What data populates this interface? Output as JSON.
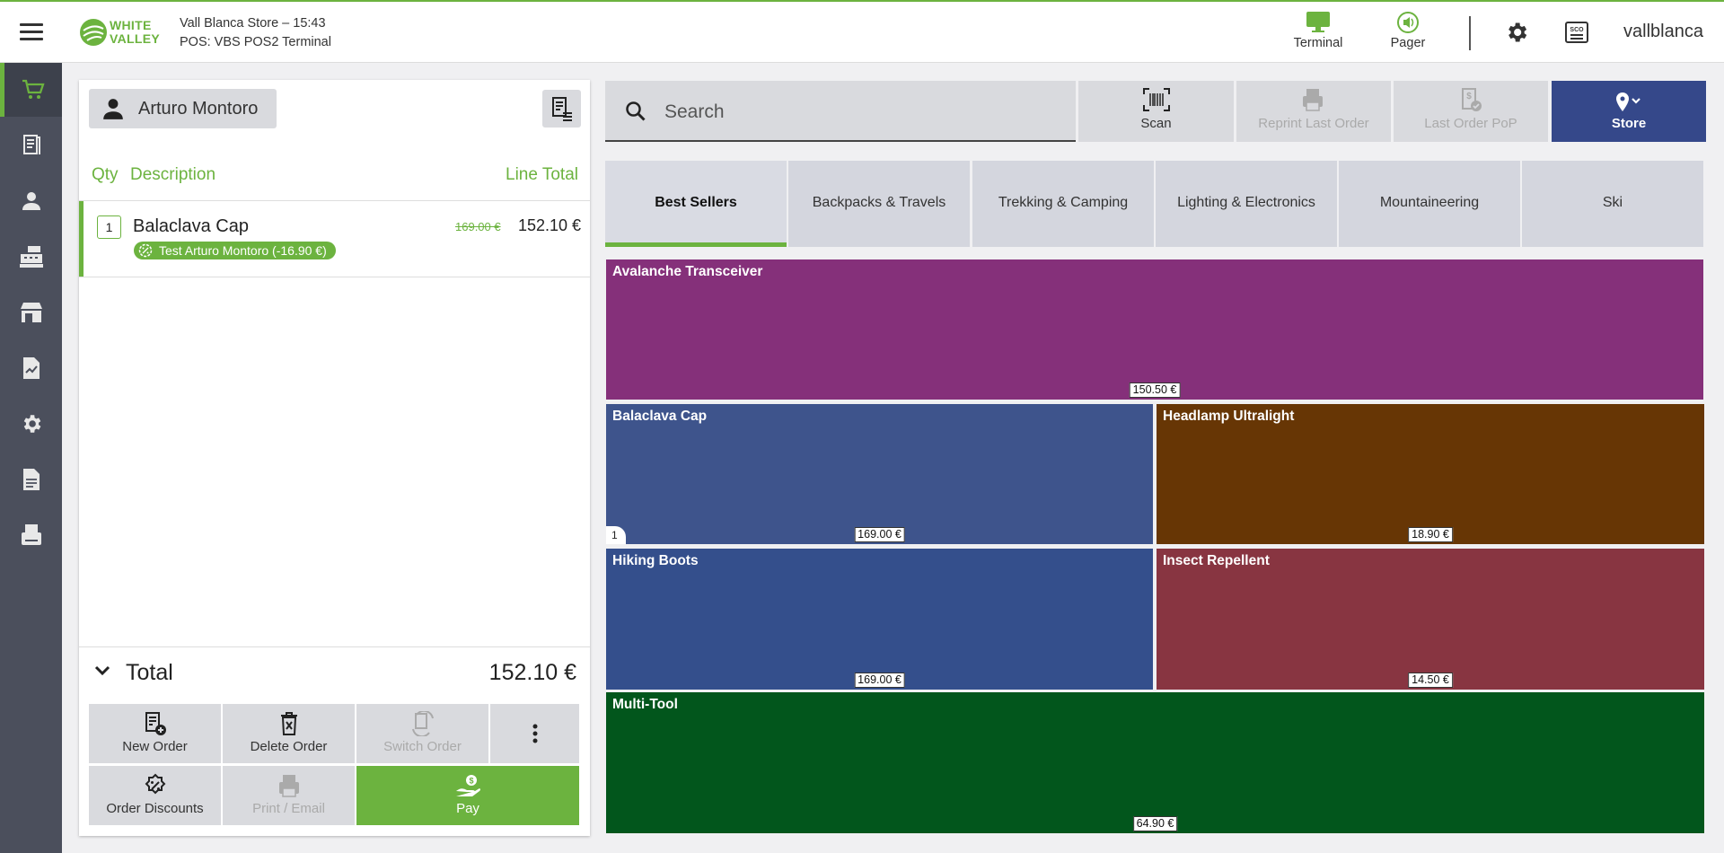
{
  "header": {
    "store_line": "Vall Blanca Store – 15:43",
    "terminal_line": "POS: VBS POS2 Terminal",
    "logo_line1": "WHITE",
    "logo_line2": "VALLEY",
    "terminal_label": "Terminal",
    "pager_label": "Pager",
    "username": "vallblanca",
    "accent_color": "#6cb33f"
  },
  "nav": {
    "items": [
      "cart-icon",
      "receipt-icon",
      "customer-icon",
      "cash-register-icon",
      "store-icon",
      "report-icon",
      "settings-icon",
      "document-icon",
      "printer-icon"
    ]
  },
  "ticket": {
    "customer_name": "Arturo Montoro",
    "headers": {
      "qty": "Qty",
      "description": "Description",
      "line_total": "Line Total"
    },
    "lines": [
      {
        "qty": "1",
        "name": "Balaclava Cap",
        "old_price": "169.00 €",
        "price": "152.10 €",
        "promo": "Test Arturo Montoro (-16.90 €)"
      }
    ],
    "total_label": "Total",
    "total_value": "152.10 €",
    "actions": {
      "new_order": "New Order",
      "delete_order": "Delete Order",
      "switch_order": "Switch Order",
      "order_discounts": "Order Discounts",
      "print_email": "Print / Email",
      "pay": "Pay"
    }
  },
  "toolbar": {
    "search_placeholder": "Search",
    "scan": "Scan",
    "reprint": "Reprint Last Order",
    "last_pop": "Last Order PoP",
    "store": "Store"
  },
  "categories": [
    "Best Sellers",
    "Backpacks & Travels",
    "Trekking & Camping",
    "Lighting & Electronics",
    "Mountaineering",
    "Ski"
  ],
  "active_category": "Best Sellers",
  "products": [
    {
      "name": "Avalanche Transceiver",
      "price": "150.50 €",
      "color": "#85307a"
    },
    {
      "name": "Balaclava Cap",
      "price": "169.00 €",
      "color": "#3e548c",
      "in_cart": "1"
    },
    {
      "name": "Headlamp Ultralight",
      "price": "18.90 €",
      "color": "#673605"
    },
    {
      "name": "Hiking Boots",
      "price": "169.00 €",
      "color": "#344f8c"
    },
    {
      "name": "Insect Repellent",
      "price": "14.50 €",
      "color": "#883541"
    },
    {
      "name": "Multi-Tool",
      "price": "64.90 €",
      "color": "#02561c"
    }
  ]
}
